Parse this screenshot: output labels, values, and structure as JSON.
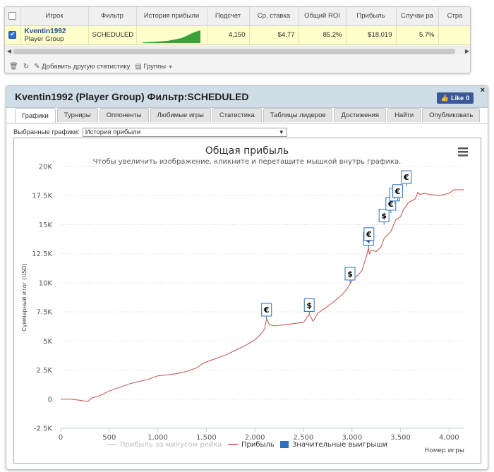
{
  "stats_table": {
    "columns": [
      "Игрок",
      "Фильтр",
      "История прибыли",
      "Подсчет",
      "Ср. ставка",
      "Общий ROI",
      "Прибыль",
      "Случаи ра",
      "Стра"
    ],
    "row": {
      "player_name": "Kventin1992",
      "player_group": "Player Group",
      "filter": "SCHEDULED",
      "count": "4,150",
      "avg_stake": "$4.77",
      "total_roi": "85.2%",
      "profit": "$18,019",
      "cases": "5.7%"
    },
    "toolbar": {
      "add_stat_label": "Добавить другую статистику",
      "groups_label": "Группы"
    }
  },
  "panel": {
    "title": "Kventin1992 (Player Group) Фильтр:SCHEDULED",
    "like_label": "Like",
    "like_count": "0",
    "close_glyph": "×",
    "tabs": [
      "Графики",
      "Турниры",
      "Оппоненты",
      "Любимые игры",
      "Статистика",
      "Таблицы лидеров",
      "Достижения",
      "Найти",
      "Опубликовать"
    ],
    "active_tab": "Графики",
    "chart_select_label": "Выбранные графики:",
    "chart_select_value": "История прибыли"
  },
  "chart_data": {
    "type": "line",
    "title": "Общая прибыль",
    "subtitle": "Чтобы увеличить изображение, кликните и перетащите мышкой внутрь графика.",
    "xlabel": "Номер игры",
    "ylabel": "Суммарный итог (USD)",
    "xlim": [
      0,
      4150
    ],
    "ylim": [
      -2500,
      20000
    ],
    "x_ticks": [
      "0",
      "500",
      "1,000",
      "1,500",
      "2,000",
      "2,500",
      "3,000",
      "3,500",
      "4,000"
    ],
    "x_tick_values": [
      0,
      500,
      1000,
      1500,
      2000,
      2500,
      3000,
      3500,
      4000
    ],
    "y_ticks": [
      "-2.5K",
      "0",
      "2.5K",
      "5K",
      "7.5K",
      "10K",
      "12.5K",
      "15K",
      "17.5K",
      "20K"
    ],
    "y_tick_values": [
      -2500,
      0,
      2500,
      5000,
      7500,
      10000,
      12500,
      15000,
      17500,
      20000
    ],
    "grid": true,
    "legend_position": "bottom",
    "series": [
      {
        "name": "Прибыль за минусом рейка",
        "color": "#cccccc",
        "visible": false,
        "x": [],
        "y": []
      },
      {
        "name": "Прибыль",
        "color": "#c0504d",
        "visible": true,
        "x": [
          0,
          100,
          200,
          280,
          320,
          400,
          500,
          600,
          700,
          800,
          900,
          1000,
          1100,
          1200,
          1300,
          1400,
          1450,
          1500,
          1600,
          1700,
          1800,
          1900,
          2000,
          2050,
          2100,
          2120,
          2150,
          2200,
          2300,
          2400,
          2500,
          2560,
          2600,
          2650,
          2700,
          2800,
          2900,
          2950,
          3000,
          3050,
          3100,
          3150,
          3170,
          3180,
          3200,
          3250,
          3300,
          3330,
          3350,
          3400,
          3430,
          3450,
          3500,
          3530,
          3550,
          3580,
          3600,
          3650,
          3680,
          3700,
          3750,
          3800,
          3900,
          4000,
          4050,
          4100,
          4150
        ],
        "y": [
          0,
          0,
          -100,
          -200,
          100,
          300,
          700,
          1000,
          1300,
          1500,
          1700,
          2000,
          2100,
          2200,
          2400,
          2700,
          3000,
          3200,
          3500,
          3800,
          4200,
          4600,
          5100,
          5500,
          6000,
          6900,
          6400,
          6300,
          6400,
          6500,
          6600,
          7300,
          6700,
          7400,
          7700,
          8300,
          9000,
          9500,
          10200,
          10600,
          11000,
          12300,
          13000,
          12500,
          12800,
          12700,
          13100,
          13800,
          14000,
          14400,
          15000,
          15400,
          15700,
          16300,
          16500,
          16900,
          17000,
          17200,
          17800,
          17600,
          17700,
          17600,
          17500,
          17700,
          18000,
          18000,
          18019
        ]
      }
    ],
    "highlight_series": {
      "name": "Значительные выигрыши",
      "color": "#2f6fbd",
      "points": [
        {
          "x": 2120,
          "y": 6900,
          "label": "€"
        },
        {
          "x": 2560,
          "y": 7300,
          "label": "$"
        },
        {
          "x": 2980,
          "y": 10000,
          "label": "$"
        },
        {
          "x": 3170,
          "y": 13000,
          "label": "$"
        },
        {
          "x": 3175,
          "y": 13400,
          "label": "€"
        },
        {
          "x": 3330,
          "y": 15000,
          "label": "$"
        },
        {
          "x": 3400,
          "y": 16000,
          "label": "€"
        },
        {
          "x": 3440,
          "y": 16800,
          "label": "$"
        },
        {
          "x": 3470,
          "y": 17100,
          "label": "€"
        },
        {
          "x": 3560,
          "y": 18300,
          "label": "€"
        }
      ]
    }
  }
}
